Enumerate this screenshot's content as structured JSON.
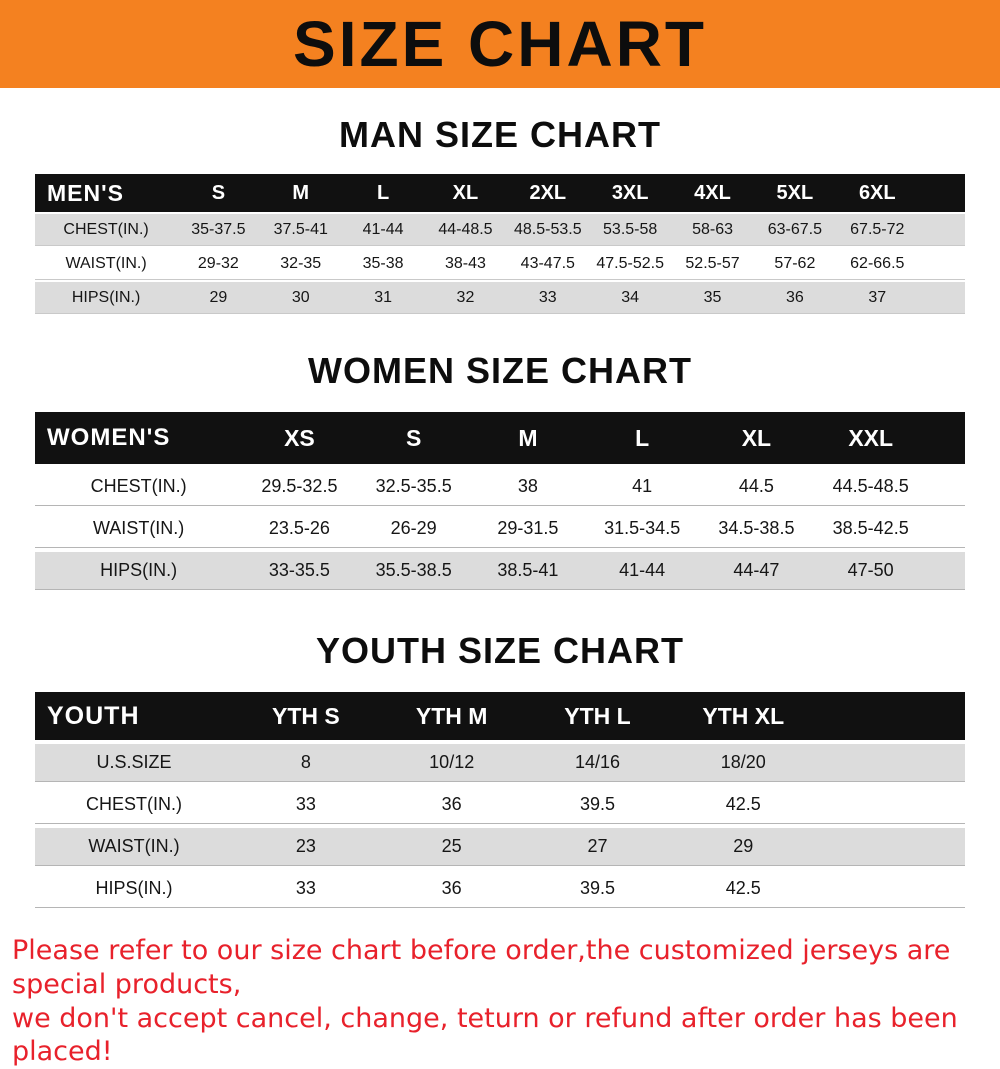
{
  "banner": {
    "title": "SIZE CHART",
    "bg_color": "#f48120",
    "text_color": "#0d0d0d"
  },
  "colors": {
    "table_header_bg": "#111111",
    "table_header_text": "#ffffff",
    "row_stripe": "#dcdcdc",
    "disclaimer_text": "#e8212b"
  },
  "chart_data": [
    {
      "type": "table",
      "title": "MAN SIZE CHART",
      "header_label": "MEN'S",
      "columns": [
        "S",
        "M",
        "L",
        "XL",
        "2XL",
        "3XL",
        "4XL",
        "5XL",
        "6XL"
      ],
      "rows": [
        {
          "label": "CHEST(IN.)",
          "values": [
            "35-37.5",
            "37.5-41",
            "41-44",
            "44-48.5",
            "48.5-53.5",
            "53.5-58",
            "58-63",
            "63-67.5",
            "67.5-72"
          ]
        },
        {
          "label": "WAIST(IN.)",
          "values": [
            "29-32",
            "32-35",
            "35-38",
            "38-43",
            "43-47.5",
            "47.5-52.5",
            "52.5-57",
            "57-62",
            "62-66.5"
          ]
        },
        {
          "label": "HIPS(IN.)",
          "values": [
            "29",
            "30",
            "31",
            "32",
            "33",
            "34",
            "35",
            "36",
            "37"
          ]
        }
      ],
      "trailing_space": true,
      "legend_position": "none",
      "grid": false
    },
    {
      "type": "table",
      "title": "WOMEN SIZE CHART",
      "header_label": "WOMEN'S",
      "columns": [
        "XS",
        "S",
        "M",
        "L",
        "XL",
        "XXL"
      ],
      "rows": [
        {
          "label": "CHEST(IN.)",
          "values": [
            "29.5-32.5",
            "32.5-35.5",
            "38",
            "41",
            "44.5",
            "44.5-48.5"
          ]
        },
        {
          "label": "WAIST(IN.)",
          "values": [
            "23.5-26",
            "26-29",
            "29-31.5",
            "31.5-34.5",
            "34.5-38.5",
            "38.5-42.5"
          ]
        },
        {
          "label": "HIPS(IN.)",
          "values": [
            "33-35.5",
            "35.5-38.5",
            "38.5-41",
            "41-44",
            "44-47",
            "47-50"
          ]
        }
      ],
      "trailing_space": true,
      "legend_position": "none",
      "grid": false
    },
    {
      "type": "table",
      "title": "YOUTH SIZE CHART",
      "header_label": "YOUTH",
      "columns": [
        "YTH S",
        "YTH M",
        "YTH L",
        "YTH XL"
      ],
      "rows": [
        {
          "label": "U.S.SIZE",
          "values": [
            "8",
            "10/12",
            "14/16",
            "18/20"
          ]
        },
        {
          "label": "CHEST(IN.)",
          "values": [
            "33",
            "36",
            "39.5",
            "42.5"
          ]
        },
        {
          "label": "WAIST(IN.)",
          "values": [
            "23",
            "25",
            "27",
            "29"
          ]
        },
        {
          "label": "HIPS(IN.)",
          "values": [
            "33",
            "36",
            "39.5",
            "42.5"
          ]
        }
      ],
      "trailing_space": true,
      "legend_position": "none",
      "grid": false
    }
  ],
  "disclaimer": {
    "line1": "Please refer to our size chart before order,the customized jerseys are special products,",
    "line2": "we don't accept cancel, change, teturn or refund after order has been placed!"
  }
}
